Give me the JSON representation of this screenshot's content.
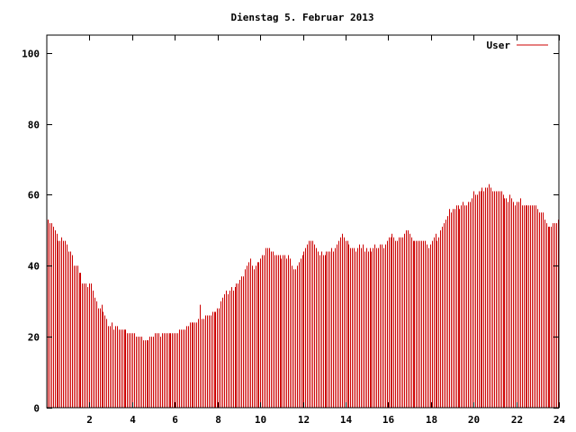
{
  "chart_data": {
    "type": "bar",
    "title": "Dienstag 5. Februar 2013",
    "xlabel": "",
    "ylabel": "",
    "xlim": [
      0,
      24
    ],
    "ylim": [
      0,
      105
    ],
    "x_ticks": [
      "2",
      "4",
      "6",
      "8",
      "10",
      "12",
      "14",
      "16",
      "18",
      "20",
      "22",
      "24"
    ],
    "y_ticks": [
      "0",
      "20",
      "40",
      "60",
      "80",
      "100"
    ],
    "legend_position": "top-right",
    "grid": false,
    "bar_color": "#cc0000",
    "series": [
      {
        "name": "User",
        "values": [
          53,
          52,
          52,
          51,
          50,
          49,
          47,
          47,
          48,
          47,
          47,
          46,
          44,
          44,
          43,
          40,
          40,
          40,
          38,
          38,
          35,
          35,
          35,
          34,
          35,
          35,
          33,
          31,
          30,
          28,
          28,
          29,
          27,
          26,
          25,
          23,
          23,
          24,
          22,
          23,
          23,
          22,
          22,
          22,
          22,
          22,
          21,
          21,
          21,
          21,
          21,
          20,
          20,
          20,
          20,
          19,
          19,
          19,
          19,
          20,
          20,
          20,
          21,
          21,
          21,
          20,
          21,
          21,
          21,
          21,
          21,
          21,
          21,
          21,
          21,
          21,
          22,
          22,
          22,
          22,
          23,
          23,
          24,
          24,
          24,
          24,
          24,
          25,
          29,
          25,
          25,
          26,
          26,
          26,
          26,
          27,
          27,
          27,
          28,
          28,
          30,
          31,
          32,
          33,
          32,
          33,
          34,
          33,
          34,
          35,
          35,
          36,
          37,
          37,
          39,
          40,
          41,
          42,
          40,
          39,
          40,
          41,
          41,
          42,
          43,
          43,
          45,
          45,
          45,
          44,
          44,
          43,
          43,
          43,
          43,
          42,
          43,
          43,
          42,
          43,
          42,
          40,
          39,
          39,
          40,
          41,
          42,
          43,
          44,
          45,
          46,
          47,
          47,
          47,
          46,
          45,
          44,
          43,
          44,
          43,
          43,
          44,
          44,
          44,
          45,
          44,
          45,
          46,
          47,
          48,
          49,
          48,
          47,
          47,
          46,
          45,
          45,
          45,
          44,
          45,
          46,
          45,
          46,
          44,
          45,
          44,
          45,
          44,
          45,
          46,
          45,
          45,
          46,
          46,
          45,
          46,
          47,
          48,
          48,
          49,
          48,
          47,
          47,
          48,
          48,
          48,
          49,
          50,
          50,
          49,
          48,
          47,
          47,
          47,
          47,
          47,
          47,
          47,
          47,
          46,
          45,
          46,
          47,
          48,
          49,
          47,
          48,
          50,
          51,
          52,
          53,
          54,
          56,
          55,
          56,
          56,
          57,
          57,
          56,
          57,
          58,
          57,
          57,
          58,
          58,
          59,
          61,
          60,
          60,
          61,
          61,
          62,
          61,
          62,
          62,
          63,
          62,
          61,
          61,
          61,
          61,
          61,
          61,
          60,
          59,
          59,
          58,
          60,
          59,
          58,
          57,
          58,
          58,
          59,
          57,
          57,
          57,
          57,
          57,
          57,
          57,
          57,
          57,
          56,
          55,
          55,
          55,
          53,
          52,
          51,
          51,
          51,
          52,
          52,
          52,
          53
        ]
      }
    ]
  }
}
